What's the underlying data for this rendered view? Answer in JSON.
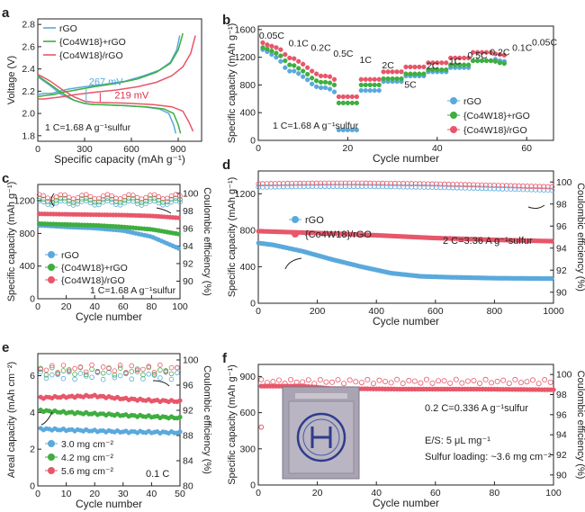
{
  "figure": {
    "colors": {
      "rgo": "#5aa9dc",
      "co4w18": "#3fae3f",
      "co4w18_rgo": "#e8566a",
      "axis": "#222222",
      "annot": "#d9324f"
    }
  },
  "chart_data": [
    {
      "id": "a",
      "panel_label": "a",
      "type": "line",
      "xlabel": "Specific capacity (mAh g⁻¹)",
      "ylabel": "Voltage (V)",
      "xlim": [
        0,
        1050
      ],
      "ylim": [
        1.75,
        2.85
      ],
      "xticks": [
        0,
        300,
        600,
        900
      ],
      "yticks": [
        1.8,
        2.0,
        2.2,
        2.4,
        2.6,
        2.8
      ],
      "xtick_labels": [
        "0",
        "300",
        "600",
        "900"
      ],
      "ytick_labels": [
        "1.8",
        "2.0",
        "2.2",
        "2.4",
        "2.6",
        "2.8"
      ],
      "series": [
        {
          "name": "rGO",
          "color_key": "rgo",
          "discharge": [
            [
              0,
              2.33
            ],
            [
              30,
              2.3
            ],
            [
              80,
              2.25
            ],
            [
              150,
              2.17
            ],
            [
              230,
              2.12
            ],
            [
              300,
              2.09
            ],
            [
              360,
              2.08
            ],
            [
              420,
              2.078
            ],
            [
              550,
              2.07
            ],
            [
              680,
              2.06
            ],
            [
              780,
              2.04
            ],
            [
              840,
              2.0
            ],
            [
              870,
              1.9
            ],
            [
              885,
              1.82
            ]
          ],
          "charge": [
            [
              0,
              2.17
            ],
            [
              40,
              2.18
            ],
            [
              90,
              2.18
            ],
            [
              140,
              2.2
            ],
            [
              200,
              2.22
            ],
            [
              300,
              2.24
            ],
            [
              420,
              2.26
            ],
            [
              560,
              2.29
            ],
            [
              680,
              2.34
            ],
            [
              780,
              2.39
            ],
            [
              850,
              2.46
            ],
            [
              890,
              2.57
            ],
            [
              910,
              2.7
            ]
          ]
        },
        {
          "name": "{Co4W18}+rGO",
          "color_key": "co4w18",
          "discharge": [
            [
              0,
              2.34
            ],
            [
              30,
              2.31
            ],
            [
              80,
              2.26
            ],
            [
              150,
              2.19
            ],
            [
              230,
              2.12
            ],
            [
              300,
              2.09
            ],
            [
              360,
              2.08
            ],
            [
              420,
              2.078
            ],
            [
              560,
              2.07
            ],
            [
              700,
              2.058
            ],
            [
              810,
              2.04
            ],
            [
              870,
              2.0
            ],
            [
              900,
              1.9
            ],
            [
              915,
              1.82
            ]
          ],
          "charge": [
            [
              0,
              2.15
            ],
            [
              40,
              2.16
            ],
            [
              100,
              2.17
            ],
            [
              160,
              2.19
            ],
            [
              240,
              2.21
            ],
            [
              360,
              2.24
            ],
            [
              500,
              2.27
            ],
            [
              640,
              2.31
            ],
            [
              760,
              2.37
            ],
            [
              850,
              2.45
            ],
            [
              900,
              2.57
            ],
            [
              930,
              2.72
            ]
          ]
        },
        {
          "name": "{Co4W18}/rGO",
          "color_key": "co4w18_rgo",
          "discharge": [
            [
              0,
              2.35
            ],
            [
              30,
              2.33
            ],
            [
              80,
              2.29
            ],
            [
              150,
              2.22
            ],
            [
              230,
              2.15
            ],
            [
              300,
              2.11
            ],
            [
              360,
              2.1
            ],
            [
              420,
              2.098
            ],
            [
              580,
              2.092
            ],
            [
              740,
              2.08
            ],
            [
              860,
              2.06
            ],
            [
              930,
              2.02
            ],
            [
              970,
              1.92
            ],
            [
              995,
              1.84
            ]
          ],
          "charge": [
            [
              0,
              2.13
            ],
            [
              40,
              2.13
            ],
            [
              100,
              2.14
            ],
            [
              160,
              2.15
            ],
            [
              240,
              2.17
            ],
            [
              360,
              2.19
            ],
            [
              500,
              2.21
            ],
            [
              640,
              2.24
            ],
            [
              760,
              2.28
            ],
            [
              860,
              2.34
            ],
            [
              930,
              2.42
            ],
            [
              980,
              2.54
            ],
            [
              1010,
              2.7
            ]
          ]
        }
      ],
      "legend": {
        "position": "top-left",
        "entries": [
          "rGO",
          "{Co4W18}+rGO",
          "{Co4W18}/rGO"
        ]
      },
      "annotations": {
        "gap1": "267 mV",
        "gap2": "219 mV",
        "note": "1 C=1.68 A g⁻¹sulfur"
      }
    },
    {
      "id": "b",
      "panel_label": "b",
      "type": "scatter",
      "xlabel": "Cycle number",
      "ylabel": "Specific capacity (mAh g⁻¹)",
      "xlim": [
        0,
        66
      ],
      "ylim": [
        0,
        1650
      ],
      "xticks": [
        0,
        20,
        40,
        60
      ],
      "yticks": [
        0,
        400,
        800,
        1200,
        1600
      ],
      "xtick_labels": [
        "0",
        "20",
        "40",
        "60"
      ],
      "ytick_labels": [
        "0",
        "400",
        "800",
        "1200",
        "1600"
      ],
      "rate_labels": [
        {
          "text": "0.05C",
          "x": 3,
          "y": 1465
        },
        {
          "text": "0.1C",
          "x": 9,
          "y": 1360
        },
        {
          "text": "0.2C",
          "x": 14,
          "y": 1290
        },
        {
          "text": "0.5C",
          "x": 19,
          "y": 1210
        },
        {
          "text": "1C",
          "x": 24,
          "y": 1120
        },
        {
          "text": "2C",
          "x": 29,
          "y": 1040
        },
        {
          "text": "5C",
          "x": 34,
          "y": 760
        },
        {
          "text": "2C",
          "x": 39,
          "y": 1030
        },
        {
          "text": "1C",
          "x": 44,
          "y": 1100
        },
        {
          "text": "0.5C",
          "x": 49,
          "y": 1180
        },
        {
          "text": "0.2C",
          "x": 54,
          "y": 1230
        },
        {
          "text": "0.1C",
          "x": 59,
          "y": 1290
        },
        {
          "text": "0.05C",
          "x": 64,
          "y": 1370
        }
      ],
      "segments": {
        "rGO": [
          1310,
          1280,
          1240,
          1200,
          1140,
          1050,
          1000,
          1000,
          965,
          920,
          875,
          815,
          775,
          760,
          760,
          740,
          700,
          150,
          150,
          150,
          150,
          150,
          720,
          720,
          720,
          720,
          720,
          850,
          850,
          850,
          850,
          850,
          930,
          930,
          930,
          930,
          930,
          990,
          990,
          990,
          990,
          990,
          1050,
          1050,
          1050,
          1050,
          1050,
          1150,
          1150,
          1150,
          1150,
          1150,
          1170,
          1150,
          1140
        ],
        "{Co4W18}+rGO": [
          1340,
          1320,
          1290,
          1260,
          1220,
          1150,
          1090,
          1080,
          1040,
          1000,
          955,
          900,
          860,
          840,
          840,
          830,
          800,
          540,
          540,
          540,
          540,
          540,
          800,
          800,
          800,
          800,
          800,
          890,
          890,
          890,
          890,
          890,
          960,
          960,
          960,
          960,
          960,
          1020,
          1020,
          1020,
          1020,
          1020,
          1090,
          1090,
          1090,
          1090,
          1090,
          1150,
          1150,
          1150,
          1150,
          1150,
          1140,
          1120,
          1110
        ],
        "{Co4W18}/rGO": [
          1410,
          1380,
          1360,
          1340,
          1310,
          1240,
          1190,
          1180,
          1140,
          1100,
          1050,
          1000,
          960,
          930,
          930,
          920,
          880,
          630,
          630,
          630,
          630,
          630,
          880,
          880,
          880,
          880,
          880,
          990,
          990,
          990,
          990,
          990,
          1060,
          1060,
          1060,
          1060,
          1060,
          1120,
          1120,
          1120,
          1120,
          1120,
          1190,
          1190,
          1190,
          1190,
          1190,
          1270,
          1270,
          1270,
          1270,
          1270,
          1250,
          1240,
          1230
        ]
      },
      "legend": {
        "position": "bottom-right",
        "entries": [
          "rGO",
          "{Co4W18}+rGO",
          "{Co4W18}/rGO"
        ]
      },
      "annotations": {
        "note": "1 C=1.68 A g⁻¹sulfur"
      }
    },
    {
      "id": "c",
      "panel_label": "c",
      "type": "scatter",
      "xlabel": "Cycle number",
      "ylabel": "Specific capacity (mAh g⁻¹)",
      "ylabel2": "Coulombic efficiency (%)",
      "xlim": [
        0,
        100
      ],
      "ylim": [
        0,
        1400
      ],
      "ylim2": [
        88,
        101
      ],
      "xticks": [
        0,
        20,
        40,
        60,
        80,
        100
      ],
      "yticks": [
        0,
        400,
        800,
        1200
      ],
      "yticks2": [
        90,
        92,
        94,
        96,
        98,
        100
      ],
      "xtick_labels": [
        "0",
        "20",
        "40",
        "60",
        "80",
        "100"
      ],
      "ytick_labels": [
        "0",
        "400",
        "800",
        "1200"
      ],
      "ytick2_labels": [
        "90",
        "92",
        "94",
        "96",
        "98",
        "100"
      ],
      "capacity": {
        "rGO": [
          [
            1,
            900
          ],
          [
            20,
            880
          ],
          [
            40,
            865
          ],
          [
            60,
            835
          ],
          [
            80,
            760
          ],
          [
            100,
            610
          ]
        ],
        "{Co4W18}+rGO": [
          [
            1,
            920
          ],
          [
            20,
            910
          ],
          [
            40,
            900
          ],
          [
            60,
            880
          ],
          [
            80,
            850
          ],
          [
            100,
            790
          ]
        ],
        "{Co4W18}/rGO": [
          [
            1,
            1040
          ],
          [
            20,
            1035
          ],
          [
            40,
            1030
          ],
          [
            60,
            1025
          ],
          [
            80,
            1015
          ],
          [
            100,
            990
          ]
        ]
      },
      "ce": {
        "rGO": 98.9,
        "{Co4W18}+rGO": 99.2,
        "{Co4W18}/rGO": 99.6
      },
      "legend": {
        "position": "bottom-left",
        "entries": [
          "rGO",
          "{Co4W18}+rGO",
          "{Co4W18}/rGO"
        ]
      },
      "annotations": {
        "note": "1 C=1.68 A g⁻¹sulfur"
      }
    },
    {
      "id": "d",
      "panel_label": "d",
      "type": "scatter",
      "xlabel": "Cycle number",
      "ylabel": "Specific capacity (mAh g⁻¹)",
      "ylabel2": "Coulombic efficiency (%)",
      "xlim": [
        0,
        1000
      ],
      "ylim": [
        0,
        1450
      ],
      "ylim2": [
        89,
        101
      ],
      "xticks": [
        0,
        200,
        400,
        600,
        800,
        1000
      ],
      "yticks": [
        0,
        400,
        800,
        1200
      ],
      "yticks2": [
        90,
        92,
        94,
        96,
        98,
        100
      ],
      "xtick_labels": [
        "0",
        "200",
        "400",
        "600",
        "800",
        "1000"
      ],
      "ytick_labels": [
        "0",
        "400",
        "800",
        "1200"
      ],
      "ytick2_labels": [
        "90",
        "92",
        "94",
        "96",
        "98",
        "100"
      ],
      "capacity": {
        "rGO": [
          [
            1,
            660
          ],
          [
            50,
            640
          ],
          [
            150,
            570
          ],
          [
            250,
            480
          ],
          [
            350,
            400
          ],
          [
            450,
            330
          ],
          [
            550,
            295
          ],
          [
            650,
            285
          ],
          [
            800,
            275
          ],
          [
            1000,
            270
          ]
        ],
        "{Co4W18}/rGO": [
          [
            1,
            790
          ],
          [
            200,
            770
          ],
          [
            400,
            745
          ],
          [
            600,
            715
          ],
          [
            800,
            695
          ],
          [
            1000,
            680
          ]
        ]
      },
      "ce": {
        "rGO": 99.3,
        "{Co4W18}/rGO": 99.6
      },
      "legend": {
        "position": "top-left",
        "entries": [
          "rGO",
          "{Co4W18}/rGO"
        ]
      },
      "annotations": {
        "note": "2 C=3.36 A g⁻¹sulfur"
      }
    },
    {
      "id": "e",
      "panel_label": "e",
      "type": "scatter",
      "xlabel": "Cycle number",
      "ylabel": "Areal capacity (mAh cm⁻²)",
      "ylabel2": "Coulombic efficiency (%)",
      "xlim": [
        0,
        50
      ],
      "ylim": [
        0,
        7.2
      ],
      "ylim2": [
        80,
        101
      ],
      "xticks": [
        0,
        10,
        20,
        30,
        40,
        50
      ],
      "yticks": [
        0,
        2,
        4,
        6
      ],
      "yticks2": [
        80,
        84,
        88,
        92,
        96,
        100
      ],
      "xtick_labels": [
        "0",
        "10",
        "20",
        "30",
        "40",
        "50"
      ],
      "ytick_labels": [
        "0",
        "2",
        "4",
        "6"
      ],
      "ytick2_labels": [
        "80",
        "84",
        "88",
        "92",
        "96",
        "100"
      ],
      "capacity": {
        "3.0 mg cm⁻²": [
          [
            1,
            3.1
          ],
          [
            10,
            3.05
          ],
          [
            30,
            2.95
          ],
          [
            50,
            2.9
          ]
        ],
        "4.2 mg cm⁻²": [
          [
            1,
            4.1
          ],
          [
            10,
            4.0
          ],
          [
            30,
            3.85
          ],
          [
            50,
            3.7
          ]
        ],
        "5.6 mg cm⁻²": [
          [
            1,
            4.8
          ],
          [
            10,
            4.85
          ],
          [
            20,
            4.9
          ],
          [
            30,
            4.75
          ],
          [
            40,
            4.65
          ],
          [
            50,
            4.6
          ]
        ]
      },
      "ce": {
        "3.0 mg cm⁻²": 97.5,
        "4.2 mg cm⁻²": 98.2,
        "5.6 mg cm⁻²": 98.6
      },
      "legend": {
        "position": "bottom-left",
        "entries": [
          "3.0 mg cm⁻²",
          "4.2 mg cm⁻²",
          "5.6 mg cm⁻²"
        ]
      },
      "annotations": {
        "note": "0.1 C"
      }
    },
    {
      "id": "f",
      "panel_label": "f",
      "type": "scatter",
      "xlabel": "Cycle number",
      "ylabel": "Specific capacity (mAh g⁻¹)",
      "ylabel2": "Coulombic efficiency (%)",
      "xlim": [
        0,
        100
      ],
      "ylim": [
        0,
        1000
      ],
      "ylim2": [
        89,
        101
      ],
      "xticks": [
        0,
        20,
        40,
        60,
        80,
        100
      ],
      "yticks": [
        0,
        300,
        600,
        900
      ],
      "yticks2": [
        90,
        92,
        94,
        96,
        98,
        100
      ],
      "xtick_labels": [
        "0",
        "20",
        "40",
        "60",
        "80",
        "100"
      ],
      "ytick_labels": [
        "0",
        "300",
        "600",
        "900"
      ],
      "ytick2_labels": [
        "90",
        "92",
        "94",
        "96",
        "98",
        "100"
      ],
      "capacity": [
        [
          1,
          820
        ],
        [
          15,
          820
        ],
        [
          25,
          800
        ],
        [
          50,
          795
        ],
        [
          75,
          795
        ],
        [
          100,
          790
        ]
      ],
      "ce": 99.3,
      "annotations": {
        "note1": "0.2 C=0.336 A g⁻¹sulfur",
        "note2": "E/S: 5 μL mg⁻¹",
        "note3": "Sulfur loading: ~3.6 mg cm⁻²"
      }
    }
  ]
}
